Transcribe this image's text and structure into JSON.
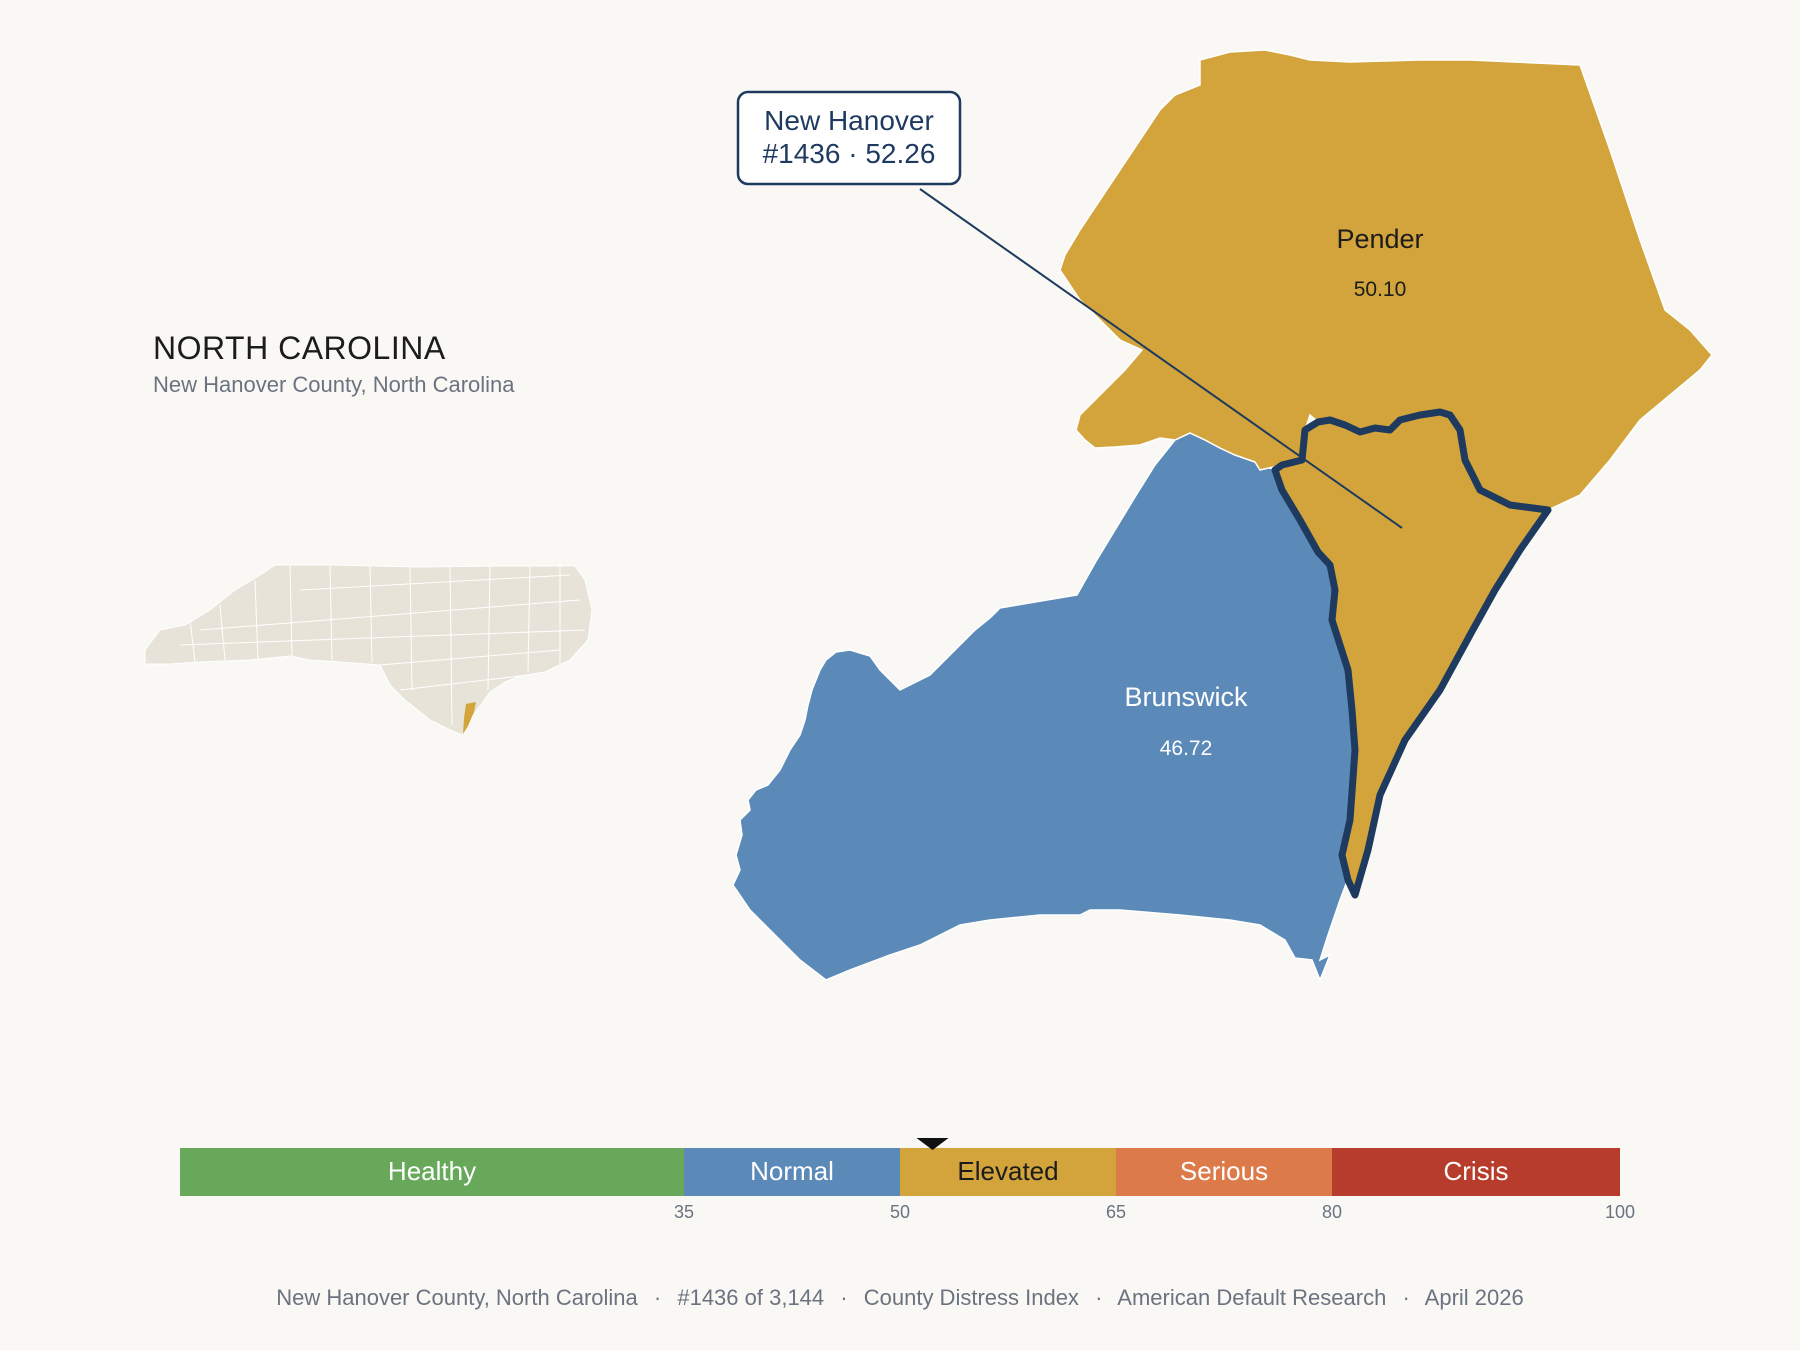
{
  "state": {
    "title": "NORTH CAROLINA",
    "subtitle": "New Hanover County, North Carolina"
  },
  "callout": {
    "line1": "New Hanover",
    "line2": "#1436 · 52.26"
  },
  "counties": [
    {
      "name": "Pender",
      "score": "50.10",
      "category": "Elevated",
      "color": "#d3a43b",
      "label_color": "#1c1c1c"
    },
    {
      "name": "Brunswick",
      "score": "46.72",
      "category": "Normal",
      "color": "#5b8ab8",
      "label_color": "#ffffff"
    },
    {
      "name": "New Hanover",
      "score": "52.26",
      "category": "Elevated",
      "color": "#d3a43b",
      "highlight_outline": "#1e3a5f"
    }
  ],
  "scale": {
    "min": 0,
    "max": 100,
    "marker_value": 52.26,
    "bands": [
      {
        "label": "Healthy",
        "from": 0,
        "to": 35,
        "color": "#67a85a",
        "text_color": "#ffffff"
      },
      {
        "label": "Normal",
        "from": 35,
        "to": 50,
        "color": "#5b8ab8",
        "text_color": "#ffffff"
      },
      {
        "label": "Elevated",
        "from": 50,
        "to": 65,
        "color": "#d3a43b",
        "text_color": "#1c1c1c"
      },
      {
        "label": "Serious",
        "from": 65,
        "to": 80,
        "color": "#dd7a4a",
        "text_color": "#ffffff"
      },
      {
        "label": "Crisis",
        "from": 80,
        "to": 100,
        "color": "#b83c2c",
        "text_color": "#ffffff"
      }
    ],
    "ticks": [
      "35",
      "50",
      "65",
      "80",
      "100"
    ]
  },
  "footer": {
    "county": "New Hanover County, North Carolina",
    "rank": "#1436 of 3,144",
    "index": "County Distress Index",
    "source": "American Default Research",
    "date": "April 2026"
  },
  "colors": {
    "background": "#f9f8f5",
    "inset_fill": "#e8e3d8",
    "inset_highlight": "#d3a43b",
    "outline": "#1e3a5f"
  }
}
